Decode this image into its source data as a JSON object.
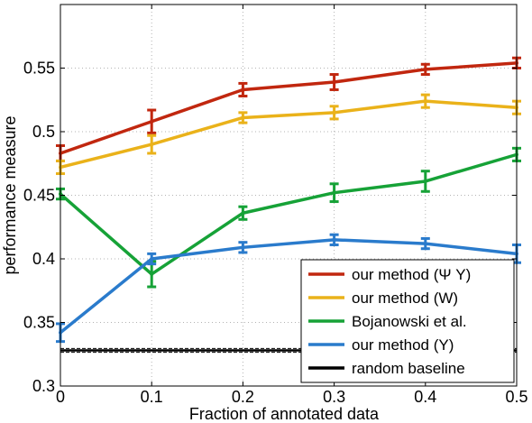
{
  "chart_data": {
    "type": "line",
    "title": "",
    "xlabel": "Fraction of annotated data",
    "ylabel": "performance measure",
    "xlim": [
      0,
      0.5
    ],
    "ylim": [
      0.3,
      0.6
    ],
    "xticks": [
      0,
      0.1,
      0.2,
      0.3,
      0.4,
      0.5
    ],
    "xtick_labels": [
      "0",
      "0.1",
      "0.2",
      "0.3",
      "0.4",
      "0.5"
    ],
    "yticks": [
      0.3,
      0.35,
      0.4,
      0.45,
      0.5,
      0.55
    ],
    "ytick_labels": [
      "0.3",
      "0.35",
      "0.4",
      "0.45",
      "0.5",
      "0.55"
    ],
    "grid": true,
    "legend_position": "bottom-right",
    "x": [
      0,
      0.1,
      0.2,
      0.3,
      0.4,
      0.5
    ],
    "series": [
      {
        "name": "our method (Ψ Y)",
        "color": "#c1270f",
        "values": [
          0.483,
          0.508,
          0.533,
          0.539,
          0.549,
          0.554
        ],
        "errors": [
          0.006,
          0.009,
          0.005,
          0.006,
          0.004,
          0.004
        ]
      },
      {
        "name": "our method (W)",
        "color": "#eab21a",
        "values": [
          0.472,
          0.49,
          0.511,
          0.515,
          0.524,
          0.519
        ],
        "errors": [
          0.005,
          0.007,
          0.004,
          0.005,
          0.005,
          0.005
        ]
      },
      {
        "name": "Bojanowski et al.",
        "color": "#16a237",
        "values": [
          0.451,
          0.388,
          0.436,
          0.452,
          0.461,
          0.482
        ],
        "errors": [
          0.004,
          0.01,
          0.005,
          0.007,
          0.008,
          0.005
        ]
      },
      {
        "name": "our method (Y)",
        "color": "#2a7bcc",
        "values": [
          0.342,
          0.4,
          0.409,
          0.415,
          0.412,
          0.404
        ],
        "errors": [
          0.007,
          0.004,
          0.004,
          0.004,
          0.004,
          0.007
        ]
      }
    ],
    "baseline": {
      "name": "random baseline",
      "color": "#000000",
      "value": 0.328,
      "band": [
        0.3265,
        0.3295
      ]
    }
  }
}
